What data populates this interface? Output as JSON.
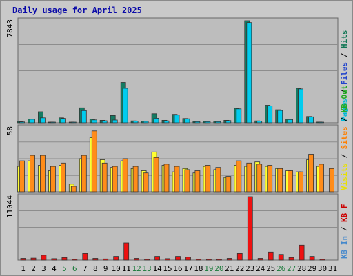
{
  "title": "Daily usage for April 2025",
  "chart_data": {
    "type": "bar",
    "title": "Daily usage for April 2025",
    "categories": [
      "1",
      "2",
      "3",
      "4",
      "5",
      "6",
      "7",
      "8",
      "9",
      "10",
      "11",
      "12",
      "13",
      "14",
      "15",
      "16",
      "17",
      "18",
      "19",
      "20",
      "21",
      "22",
      "23",
      "24",
      "25",
      "26",
      "27",
      "28",
      "29",
      "30",
      "31"
    ],
    "weekend_days": [
      "5",
      "6",
      "12",
      "13",
      "19",
      "20",
      "26",
      "27"
    ],
    "panels": [
      {
        "id": "top",
        "ymax_label": "7843",
        "ymax": 7843,
        "legend": [
          {
            "text": "Pages",
            "color": "#00b8d8"
          },
          {
            "text": "Files",
            "color": "#2244cc"
          },
          {
            "text": "Hits",
            "color": "#117755"
          }
        ],
        "series": [
          {
            "name": "Hits",
            "color": "#157a62",
            "values": [
              100,
              280,
              850,
              30,
              380,
              40,
              1150,
              280,
              190,
              560,
              3100,
              150,
              120,
              700,
              190,
              650,
              330,
              110,
              110,
              110,
              190,
              1120,
              7843,
              150,
              1350,
              1000,
              270,
              2650,
              490,
              60,
              null
            ]
          },
          {
            "name": "Pages",
            "color": "#00ccee",
            "values": [
              70,
              270,
              380,
              25,
              340,
              30,
              940,
              220,
              160,
              210,
              2650,
              140,
              110,
              350,
              150,
              600,
              310,
              90,
              90,
              90,
              170,
              1070,
              7700,
              130,
              1300,
              950,
              250,
              2600,
              460,
              50,
              null
            ]
          }
        ]
      },
      {
        "id": "middle",
        "ymax_label": "58",
        "ymax": 58,
        "legend": [
          {
            "text": "Visits",
            "color": "#e8e000"
          },
          {
            "text": "Sites",
            "color": "#ff7f00"
          },
          {
            "text": "KB Out",
            "color": "#22aa22"
          }
        ],
        "series": [
          {
            "name": "Visits",
            "color": "#ffff33",
            "values": [
              23,
              28,
              24,
              19,
              24,
              7,
              30,
              49,
              29,
              22,
              28,
              21,
              19,
              36,
              24,
              18,
              21,
              17,
              23,
              20,
              13,
              24,
              23,
              27,
              23,
              21,
              19,
              18,
              29,
              23,
              null
            ]
          },
          {
            "name": "Sites",
            "color": "#ff8c1a",
            "values": [
              28,
              33,
              33,
              23,
              26,
              5,
              33,
              55,
              26,
              23,
              30,
              23,
              17,
              31,
              25,
              23,
              20,
              19,
              24,
              22,
              14,
              28,
              26,
              25,
              24,
              21,
              19,
              18,
              34,
              25,
              21
            ]
          }
        ]
      },
      {
        "id": "bottom",
        "ymax_label": "11044",
        "ymax": 11044,
        "legend": [
          {
            "text": "KB In",
            "color": "#4488cc"
          },
          {
            "text": "KB F",
            "color": "#cc0000"
          }
        ],
        "series": [
          {
            "name": "KB F",
            "color": "#ee1111",
            "values": [
              300,
              350,
              850,
              250,
              450,
              150,
              1150,
              300,
              200,
              650,
              3000,
              300,
              150,
              650,
              250,
              650,
              500,
              150,
              150,
              150,
              300,
              1150,
              11044,
              300,
              1400,
              1000,
              450,
              2600,
              650,
              150,
              null
            ]
          }
        ]
      }
    ]
  }
}
